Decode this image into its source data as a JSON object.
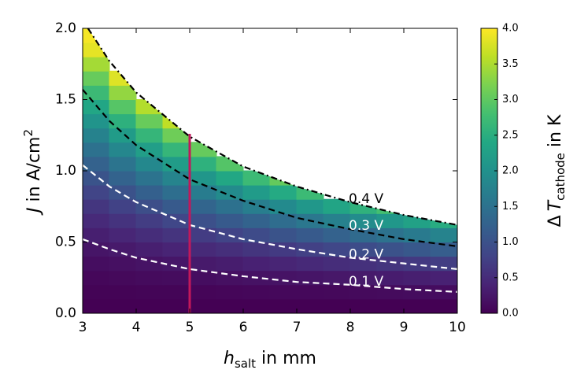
{
  "chart_data": {
    "type": "contourf",
    "colormap": "viridis",
    "xlabel": {
      "symbol": "h",
      "subscript": "salt",
      "text": "in mm"
    },
    "ylabel": {
      "symbol": "J",
      "text": "in A/cm",
      "superscript": "2"
    },
    "clabel": {
      "prefix": "Δ",
      "symbol": "T",
      "subscript": "cathode",
      "text": "in K"
    },
    "xlim": [
      3,
      10
    ],
    "xticks": [
      3,
      4,
      5,
      6,
      7,
      8,
      9,
      10
    ],
    "ylim": [
      0,
      2
    ],
    "yticks": [
      {
        "value": 0,
        "label": "0.0"
      },
      {
        "value": 0.5,
        "label": "0.5"
      },
      {
        "value": 1,
        "label": "1.0"
      },
      {
        "value": 1.5,
        "label": "1.5"
      },
      {
        "value": 2,
        "label": "2.0"
      }
    ],
    "clim": [
      0,
      4
    ],
    "cticks": [
      {
        "value": 0,
        "label": "0.0"
      },
      {
        "value": 0.5,
        "label": "0.5"
      },
      {
        "value": 1,
        "label": "1.0"
      },
      {
        "value": 1.5,
        "label": "1.5"
      },
      {
        "value": 2,
        "label": "2.0"
      },
      {
        "value": 2.5,
        "label": "2.5"
      },
      {
        "value": 3,
        "label": "3.0"
      },
      {
        "value": 3.5,
        "label": "3.5"
      },
      {
        "value": 4,
        "label": "4.0"
      }
    ],
    "x": [
      3.25,
      3.75,
      4.25,
      4.75,
      5.25,
      5.75,
      6.25,
      6.75,
      7.25,
      7.75,
      8.25,
      8.75,
      9.25,
      9.75
    ],
    "y": [
      0.05,
      0.15,
      0.25,
      0.35,
      0.45,
      0.55,
      0.65,
      0.75,
      0.85,
      0.95,
      1.05,
      1.15,
      1.25,
      1.35,
      1.45,
      1.55,
      1.65,
      1.75,
      1.85,
      1.95
    ],
    "z": [
      [
        0,
        0,
        0,
        0,
        0,
        0,
        0,
        0,
        0,
        0,
        0,
        0,
        0,
        0
      ],
      [
        0.03,
        0.03,
        0.04,
        0.04,
        0.05,
        0.06,
        0.07,
        0.08,
        0.08,
        0.09,
        0.1,
        0.11,
        0.12,
        0.13
      ],
      [
        0.07,
        0.09,
        0.11,
        0.12,
        0.14,
        0.17,
        0.19,
        0.21,
        0.23,
        0.26,
        0.28,
        0.31,
        0.34,
        0.37
      ],
      [
        0.14,
        0.17,
        0.21,
        0.24,
        0.28,
        0.32,
        0.37,
        0.41,
        0.46,
        0.51,
        0.56,
        0.61,
        0.66,
        0.72
      ],
      [
        0.23,
        0.28,
        0.34,
        0.4,
        0.47,
        0.54,
        0.61,
        0.68,
        0.76,
        0.84,
        0.92,
        1.01,
        1.09,
        1.18
      ],
      [
        0.34,
        0.42,
        0.51,
        0.6,
        0.7,
        0.8,
        0.91,
        1.02,
        1.13,
        1.25,
        1.38,
        1.5,
        1.63,
        1.77
      ],
      [
        0.48,
        0.59,
        0.71,
        0.84,
        0.98,
        1.12,
        1.27,
        1.42,
        1.58,
        1.75,
        1.92,
        2.1,
        2.28,
        2.47
      ],
      [
        0.63,
        0.78,
        0.95,
        1.12,
        1.3,
        1.49,
        1.69,
        1.89,
        2.11,
        2.33,
        2.56,
        2.8,
        null,
        null
      ],
      [
        0.81,
        1.01,
        1.22,
        1.44,
        1.67,
        1.91,
        2.17,
        2.43,
        2.71,
        null,
        null,
        null,
        null,
        null
      ],
      [
        1.02,
        1.26,
        1.52,
        1.79,
        2.08,
        2.39,
        2.71,
        3.04,
        null,
        null,
        null,
        null,
        null,
        null
      ],
      [
        1.24,
        1.54,
        1.85,
        2.19,
        2.55,
        2.92,
        null,
        null,
        null,
        null,
        null,
        null,
        null,
        null
      ],
      [
        1.49,
        1.84,
        2.22,
        2.63,
        3.05,
        null,
        null,
        null,
        null,
        null,
        null,
        null,
        null,
        null
      ],
      [
        1.76,
        2.18,
        2.63,
        3.11,
        null,
        null,
        null,
        null,
        null,
        null,
        null,
        null,
        null,
        null
      ],
      [
        2.05,
        2.54,
        3.07,
        3.62,
        null,
        null,
        null,
        null,
        null,
        null,
        null,
        null,
        null,
        null
      ],
      [
        2.37,
        2.93,
        3.54,
        null,
        null,
        null,
        null,
        null,
        null,
        null,
        null,
        null,
        null,
        null
      ],
      [
        2.7,
        3.35,
        null,
        null,
        null,
        null,
        null,
        null,
        null,
        null,
        null,
        null,
        null,
        null
      ],
      [
        3.06,
        3.8,
        null,
        null,
        null,
        null,
        null,
        null,
        null,
        null,
        null,
        null,
        null,
        null
      ],
      [
        3.45,
        null,
        null,
        null,
        null,
        null,
        null,
        null,
        null,
        null,
        null,
        null,
        null,
        null
      ],
      [
        3.85,
        null,
        null,
        null,
        null,
        null,
        null,
        null,
        null,
        null,
        null,
        null,
        null,
        null
      ],
      [
        3.95,
        null,
        null,
        null,
        null,
        null,
        null,
        null,
        null,
        null,
        null,
        null,
        null,
        null
      ]
    ],
    "contours": [
      {
        "name": "0.4 V",
        "color": "#000000",
        "style": "dashdot",
        "x": [
          3.1,
          3.5,
          4,
          5,
          6,
          7,
          8,
          9,
          10
        ],
        "y": [
          2.0,
          1.77,
          1.55,
          1.24,
          1.03,
          0.89,
          0.78,
          0.69,
          0.62
        ]
      },
      {
        "name": "0.3 V",
        "color": "#000000",
        "style": "dashed",
        "x": [
          3,
          3.5,
          4,
          5,
          6,
          7,
          8,
          9,
          10
        ],
        "y": [
          1.57,
          1.35,
          1.18,
          0.94,
          0.79,
          0.67,
          0.59,
          0.52,
          0.47
        ]
      },
      {
        "name": "0.2 V",
        "color": "#ffffff",
        "style": "dashed",
        "x": [
          3,
          3.5,
          4,
          5,
          6,
          7,
          8,
          9,
          10
        ],
        "y": [
          1.04,
          0.89,
          0.78,
          0.62,
          0.52,
          0.45,
          0.39,
          0.35,
          0.31
        ]
      },
      {
        "name": "0.1 V",
        "color": "#ffffff",
        "style": "dashed",
        "x": [
          3,
          3.5,
          4,
          5,
          6,
          7,
          8,
          9,
          10
        ],
        "y": [
          0.52,
          0.45,
          0.39,
          0.31,
          0.26,
          0.22,
          0.2,
          0.17,
          0.15
        ]
      }
    ],
    "vline": {
      "x": 5,
      "ymin": 0,
      "ymax": 1.26,
      "color": "#c2185b"
    }
  }
}
